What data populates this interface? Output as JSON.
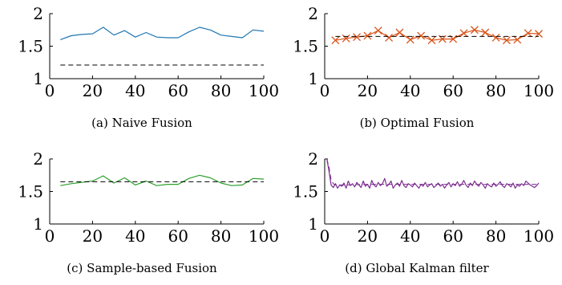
{
  "chart_data": [
    {
      "type": "line",
      "caption": "(a) Naive Fusion",
      "xlim": [
        0,
        100
      ],
      "ylim": [
        1,
        2
      ],
      "xticks": [
        "0",
        "20",
        "40",
        "60",
        "80",
        "100"
      ],
      "yticks": [
        "1",
        "1.5",
        "2"
      ],
      "grid": false,
      "series": [
        {
          "color": "#1f77b4",
          "style": "solid",
          "marker": "none",
          "x": [
            5,
            10,
            15,
            20,
            25,
            30,
            35,
            40,
            45,
            50,
            55,
            60,
            65,
            70,
            75,
            80,
            85,
            90,
            95,
            100
          ],
          "y": [
            1.6,
            1.66,
            1.68,
            1.69,
            1.79,
            1.67,
            1.74,
            1.64,
            1.71,
            1.64,
            1.63,
            1.63,
            1.72,
            1.79,
            1.75,
            1.67,
            1.65,
            1.63,
            1.75,
            1.73
          ]
        },
        {
          "color": "#000000",
          "style": "dashed",
          "marker": "none",
          "x": [
            5,
            100
          ],
          "y": [
            1.21,
            1.21
          ]
        }
      ]
    },
    {
      "type": "line",
      "caption": "(b) Optimal Fusion",
      "xlim": [
        0,
        100
      ],
      "ylim": [
        1,
        2
      ],
      "xticks": [
        "0",
        "20",
        "40",
        "60",
        "80",
        "100"
      ],
      "yticks": [
        "1",
        "1.5",
        "2"
      ],
      "grid": false,
      "series": [
        {
          "color": "#d95319",
          "style": "solid",
          "marker": "x",
          "x": [
            5,
            10,
            15,
            20,
            25,
            30,
            35,
            40,
            45,
            50,
            55,
            60,
            65,
            70,
            75,
            80,
            85,
            90,
            95,
            100
          ],
          "y": [
            1.59,
            1.62,
            1.64,
            1.66,
            1.74,
            1.63,
            1.71,
            1.6,
            1.66,
            1.59,
            1.61,
            1.61,
            1.7,
            1.75,
            1.71,
            1.63,
            1.59,
            1.6,
            1.7,
            1.69
          ]
        },
        {
          "color": "#000000",
          "style": "dashed",
          "marker": "none",
          "x": [
            5,
            100
          ],
          "y": [
            1.65,
            1.65
          ]
        }
      ]
    },
    {
      "type": "line",
      "caption": "(c) Sample-based Fusion",
      "xlim": [
        0,
        100
      ],
      "ylim": [
        1,
        2
      ],
      "xticks": [
        "0",
        "20",
        "40",
        "60",
        "80",
        "100"
      ],
      "yticks": [
        "1",
        "1.5",
        "2"
      ],
      "grid": false,
      "series": [
        {
          "color": "#2ca02c",
          "style": "solid",
          "marker": "none",
          "x": [
            5,
            10,
            15,
            20,
            25,
            30,
            35,
            40,
            45,
            50,
            55,
            60,
            65,
            70,
            75,
            80,
            85,
            90,
            95,
            100
          ],
          "y": [
            1.59,
            1.62,
            1.64,
            1.66,
            1.74,
            1.63,
            1.71,
            1.6,
            1.66,
            1.59,
            1.61,
            1.61,
            1.7,
            1.75,
            1.71,
            1.63,
            1.59,
            1.6,
            1.7,
            1.69
          ]
        },
        {
          "color": "#000000",
          "style": "dashed",
          "marker": "none",
          "x": [
            5,
            100
          ],
          "y": [
            1.65,
            1.65
          ]
        }
      ]
    },
    {
      "type": "line",
      "caption": "(d) Global Kalman filter",
      "xlim": [
        0,
        100
      ],
      "ylim": [
        1,
        2
      ],
      "xticks": [
        "0",
        "20",
        "40",
        "60",
        "80",
        "100"
      ],
      "yticks": [
        "1",
        "1.5",
        "2"
      ],
      "grid": false,
      "series": [
        {
          "color": "#7b2d8e",
          "style": "solid",
          "marker": "none",
          "x": [
            1,
            2,
            3,
            4,
            5,
            6,
            7,
            8,
            9,
            10,
            11,
            12,
            13,
            14,
            15,
            16,
            17,
            18,
            19,
            20,
            21,
            22,
            23,
            24,
            25,
            26,
            27,
            28,
            29,
            30,
            31,
            32,
            33,
            34,
            35,
            36,
            37,
            38,
            39,
            40,
            41,
            42,
            43,
            44,
            45,
            46,
            47,
            48,
            49,
            50,
            51,
            52,
            53,
            54,
            55,
            56,
            57,
            58,
            59,
            60,
            61,
            62,
            63,
            64,
            65,
            66,
            67,
            68,
            69,
            70,
            71,
            72,
            73,
            74,
            75,
            76,
            77,
            78,
            79,
            80,
            81,
            82,
            83,
            84,
            85,
            86,
            87,
            88,
            89,
            90,
            91,
            92,
            93,
            94,
            95,
            96,
            97,
            98,
            99,
            100
          ],
          "y": [
            2.0,
            1.82,
            1.6,
            1.56,
            1.62,
            1.55,
            1.6,
            1.58,
            1.63,
            1.55,
            1.66,
            1.59,
            1.62,
            1.57,
            1.64,
            1.6,
            1.56,
            1.66,
            1.58,
            1.61,
            1.55,
            1.67,
            1.6,
            1.57,
            1.64,
            1.59,
            1.62,
            1.7,
            1.58,
            1.61,
            1.66,
            1.55,
            1.6,
            1.63,
            1.58,
            1.67,
            1.59,
            1.56,
            1.62,
            1.6,
            1.57,
            1.63,
            1.59,
            1.55,
            1.61,
            1.58,
            1.64,
            1.57,
            1.6,
            1.62,
            1.56,
            1.59,
            1.63,
            1.58,
            1.61,
            1.55,
            1.6,
            1.64,
            1.57,
            1.62,
            1.59,
            1.65,
            1.58,
            1.61,
            1.67,
            1.6,
            1.56,
            1.63,
            1.59,
            1.66,
            1.61,
            1.58,
            1.64,
            1.6,
            1.55,
            1.62,
            1.59,
            1.57,
            1.63,
            1.58,
            1.61,
            1.65,
            1.59,
            1.56,
            1.62,
            1.6,
            1.57,
            1.63,
            1.55,
            1.6,
            1.58,
            1.62,
            1.59,
            1.66,
            1.63,
            1.6,
            1.58,
            1.56,
            1.59,
            1.63
          ]
        },
        {
          "color": "#7b2d8e",
          "style": "dashed",
          "marker": "none",
          "x": [
            1,
            2,
            3,
            4,
            5,
            6,
            10,
            20,
            30,
            40,
            50,
            60,
            70,
            80,
            90,
            100
          ],
          "y": [
            2.0,
            1.88,
            1.68,
            1.62,
            1.6,
            1.6,
            1.6,
            1.61,
            1.61,
            1.61,
            1.61,
            1.61,
            1.61,
            1.61,
            1.61,
            1.61
          ]
        }
      ]
    }
  ]
}
